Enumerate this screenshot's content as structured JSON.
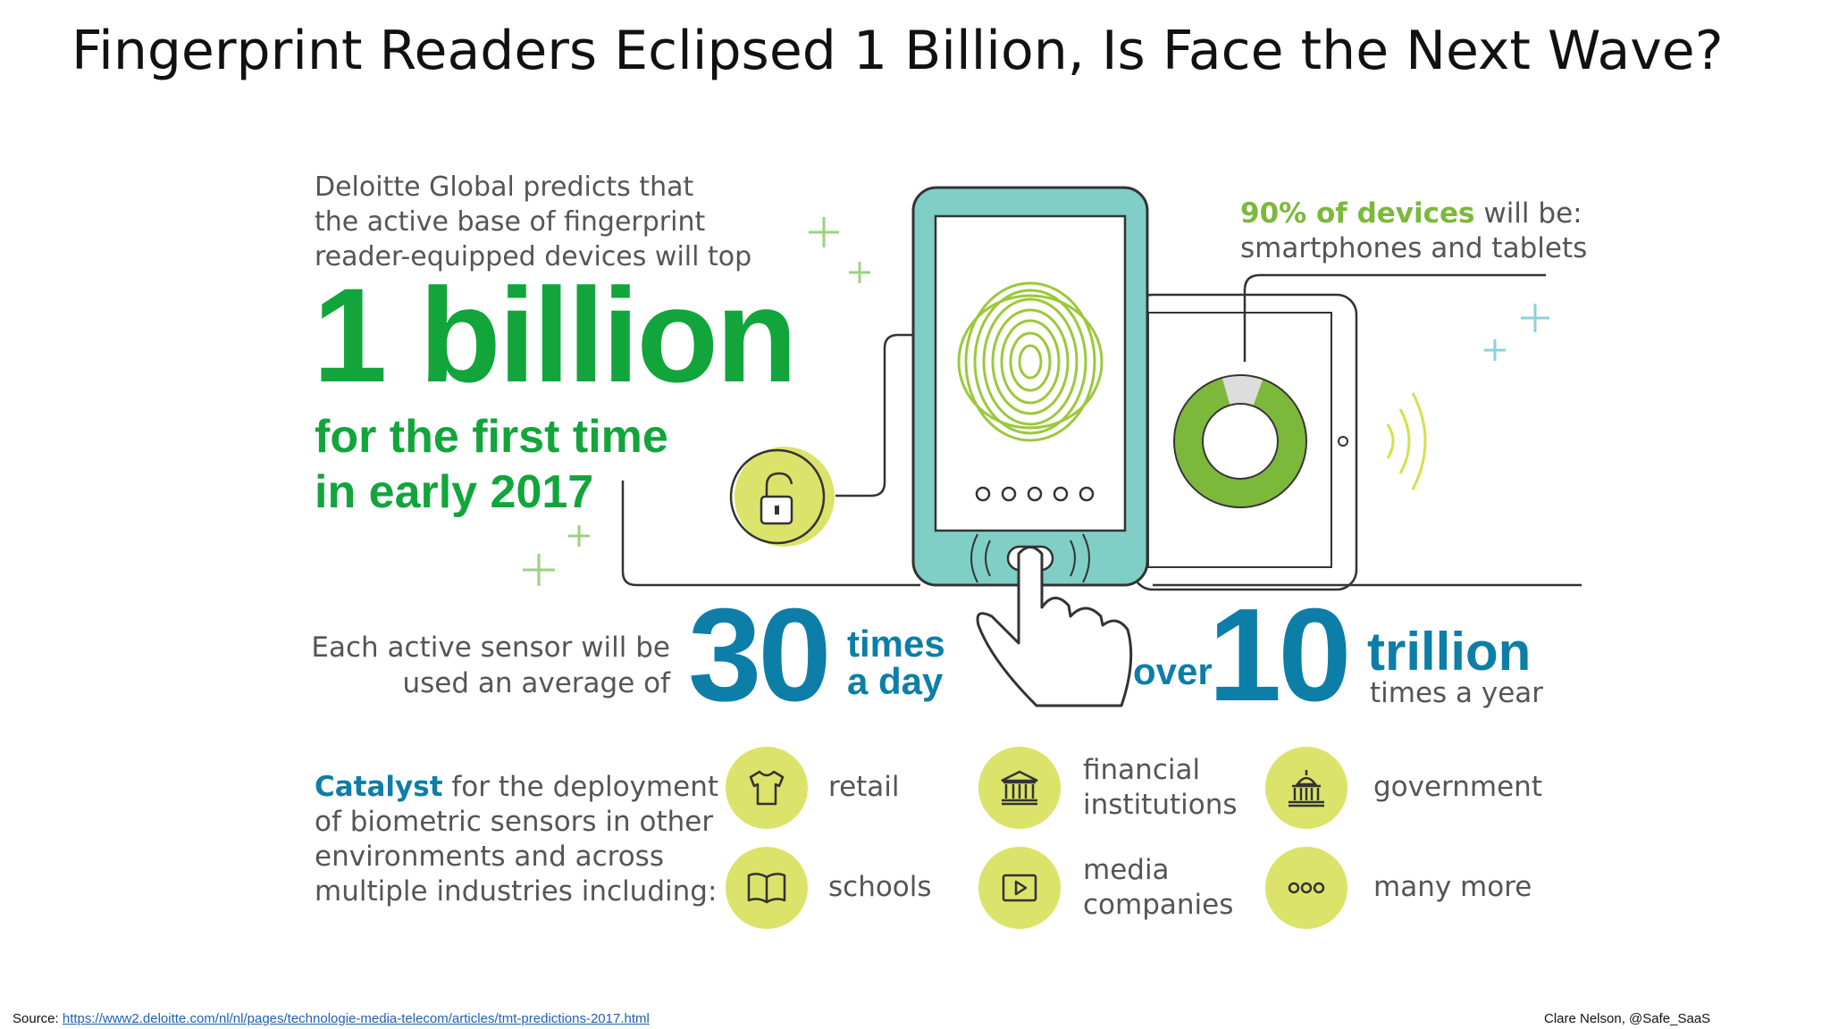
{
  "slide": {
    "title": "Fingerprint Readers Eclipsed 1 Billion, Is Face the Next Wave?"
  },
  "infographic": {
    "intro": [
      "Deloitte Global predicts that",
      "the active base of fingerprint",
      "reader-equipped devices will top"
    ],
    "big_number": "1 billion",
    "first_time": [
      "for the first time",
      "in early 2017"
    ],
    "sensor_text": [
      "Each active sensor will be",
      "used an average of"
    ],
    "uses_per_day": "30",
    "times_a_day": [
      "times",
      "a day"
    ],
    "over": "over",
    "yearly_number": "10",
    "trillion": "trillion",
    "times_a_year": "times a year",
    "pct_highlight": "90% of devices",
    "pct_rest": " will be:",
    "pct_line2": "smartphones and tablets",
    "donut_fraction": 0.9,
    "catalyst_word": "Catalyst",
    "catalyst_rest": " for the deployment",
    "catalyst_lines": [
      "of biometric sensors in other",
      "environments and across",
      "multiple industries including:"
    ],
    "industries": [
      {
        "icon": "tshirt-icon",
        "label": [
          "retail"
        ]
      },
      {
        "icon": "bank-icon",
        "label": [
          "financial",
          "institutions"
        ]
      },
      {
        "icon": "capitol-icon",
        "label": [
          "government"
        ]
      },
      {
        "icon": "book-icon",
        "label": [
          "schools"
        ]
      },
      {
        "icon": "play-icon",
        "label": [
          "media",
          "companies"
        ]
      },
      {
        "icon": "dots-icon",
        "label": [
          "many more"
        ]
      }
    ],
    "phone_dots": 5
  },
  "footer": {
    "source_label": "Source: ",
    "source_url": "https://www2.deloitte.com/nl/nl/pages/technologie-media-telecom/articles/tmt-predictions-2017.html",
    "credit": "Clare Nelson, @Safe_SaaS"
  },
  "colors": {
    "green": "#12a53b",
    "lime": "#7cb83a",
    "teal": "#0d7ea8",
    "yellow": "#dbe36a",
    "phone_teal": "#7fcfc6"
  }
}
